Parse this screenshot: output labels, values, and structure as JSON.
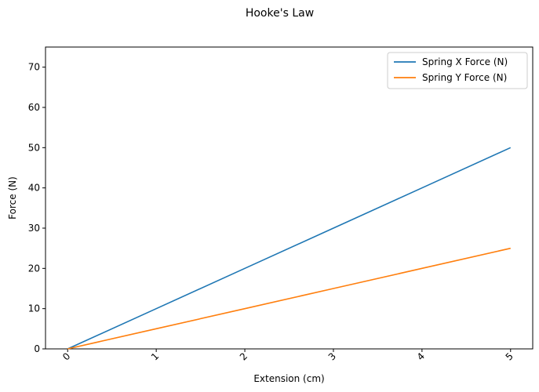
{
  "chart_data": {
    "type": "line",
    "title": "Hooke's Law",
    "xlabel": "Extension (cm)",
    "ylabel": "Force (N)",
    "x": [
      0,
      1,
      2,
      3,
      4,
      5
    ],
    "xlim": [
      -0.25,
      5.25
    ],
    "ylim": [
      0,
      75
    ],
    "xticks": [
      "0",
      "1",
      "2",
      "3",
      "4",
      "5"
    ],
    "yticks": [
      "0",
      "10",
      "20",
      "30",
      "40",
      "50",
      "60",
      "70"
    ],
    "xtick_rotation": 45,
    "grid": false,
    "legend_position": "top-right",
    "series": [
      {
        "name": "Spring X Force (N)",
        "values": [
          0,
          10,
          20,
          30,
          40,
          50
        ],
        "color": "#1f77b4"
      },
      {
        "name": "Spring Y Force (N)",
        "values": [
          0,
          5,
          10,
          15,
          20,
          25
        ],
        "color": "#ff7f0e"
      }
    ]
  }
}
